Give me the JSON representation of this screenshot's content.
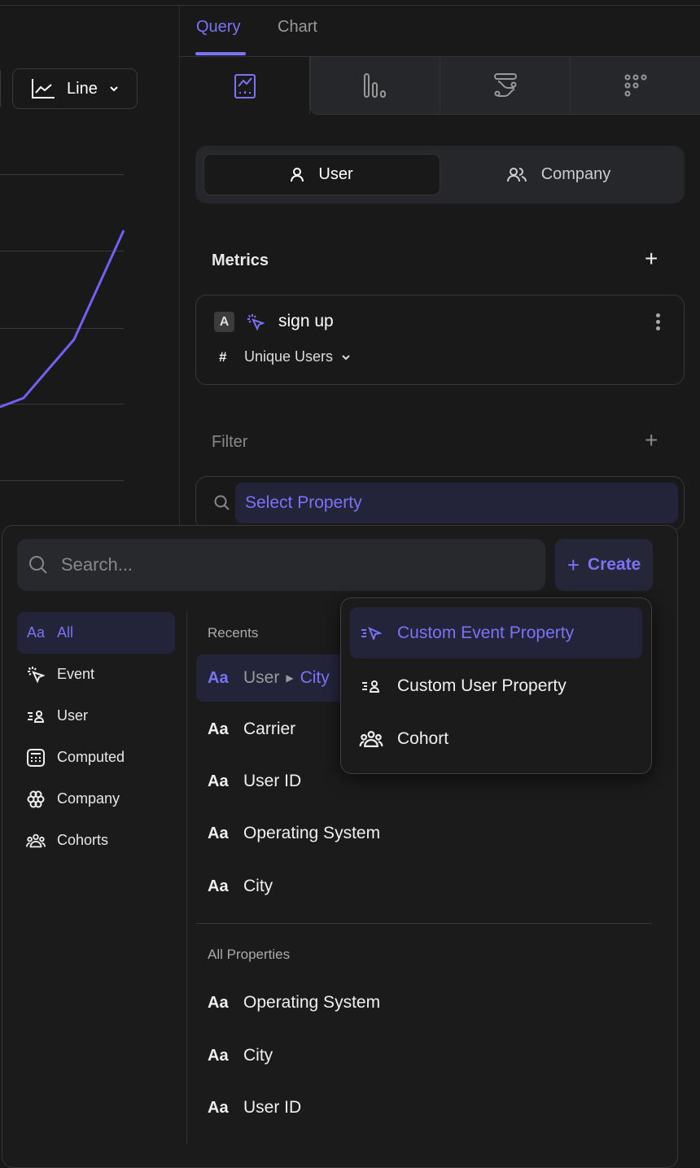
{
  "chart_toolbar": {
    "chart_type_label": "Line"
  },
  "tabs": [
    {
      "label": "Query",
      "active": true
    },
    {
      "label": "Chart",
      "active": false
    }
  ],
  "chart_types": [
    "line-chart-icon",
    "bar-chart-icon",
    "flow-icon",
    "retention-grid-icon"
  ],
  "entity_toggle": {
    "user": "User",
    "company": "Company",
    "selected": "User"
  },
  "metrics": {
    "title": "Metrics",
    "items": [
      {
        "badge": "A",
        "event": "sign up",
        "aggregation": "Unique Users",
        "aggregation_icon": "#"
      }
    ]
  },
  "filter": {
    "title": "Filter",
    "select_placeholder": "Select Property"
  },
  "picker": {
    "search_placeholder": "Search...",
    "create_label": "Create",
    "categories": [
      {
        "label": "All",
        "icon": "Aa",
        "active": true
      },
      {
        "label": "Event",
        "icon": "event-icon"
      },
      {
        "label": "User",
        "icon": "user-list-icon"
      },
      {
        "label": "Computed",
        "icon": "calculator-icon"
      },
      {
        "label": "Company",
        "icon": "company-icon"
      },
      {
        "label": "Cohorts",
        "icon": "cohort-icon"
      }
    ],
    "recents_label": "Recents",
    "recents": [
      {
        "prefix": "User",
        "name": "City",
        "highlighted": true
      },
      {
        "name": "Carrier"
      },
      {
        "name": "User ID"
      },
      {
        "name": "Operating System"
      },
      {
        "name": "City"
      }
    ],
    "all_label": "All Properties",
    "all": [
      {
        "name": "Operating System"
      },
      {
        "name": "City"
      },
      {
        "name": "User ID"
      }
    ],
    "type_glyph": "Aa"
  },
  "create_menu": [
    {
      "label": "Custom Event Property",
      "icon": "custom-event-icon",
      "highlighted": true
    },
    {
      "label": "Custom User Property",
      "icon": "custom-user-icon"
    },
    {
      "label": "Cohort",
      "icon": "cohort-icon"
    }
  ],
  "colors": {
    "accent": "#7b73f5",
    "background": "#191919",
    "panel": "#26272b"
  }
}
